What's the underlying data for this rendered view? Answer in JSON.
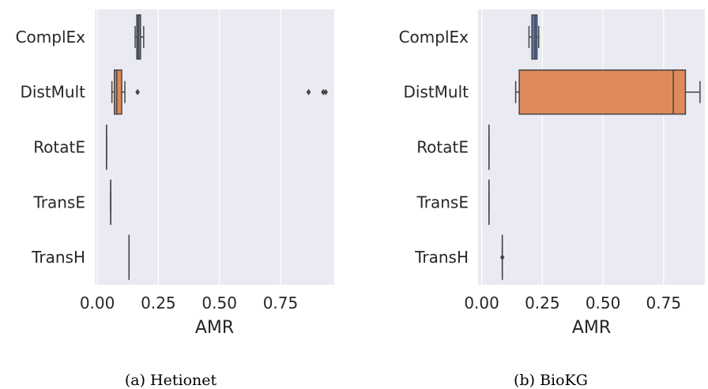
{
  "chart_data": [
    {
      "type": "boxplot",
      "orientation": "horizontal",
      "caption": "(a) Hetionet",
      "xlabel": "AMR",
      "xlim": [
        -0.01,
        0.97
      ],
      "xticks": [
        "0.00",
        "0.25",
        "0.50",
        "0.75"
      ],
      "xtick_values": [
        0,
        0.25,
        0.5,
        0.75
      ],
      "grid": true,
      "categories": [
        "ComplEx",
        "DistMult",
        "RotatE",
        "TransE",
        "TransH"
      ],
      "boxes": [
        {
          "name": "ComplEx",
          "color": "#4c72b0",
          "whislo": 0.155,
          "q1": 0.162,
          "median": 0.168,
          "q3": 0.177,
          "whishi": 0.19,
          "fliers": []
        },
        {
          "name": "DistMult",
          "color": "#dd8452",
          "whislo": 0.06,
          "q1": 0.07,
          "median": 0.08,
          "q3": 0.1,
          "whishi": 0.113,
          "fliers": [
            0.165,
            0.865,
            0.925,
            0.935
          ]
        },
        {
          "name": "RotatE",
          "color": "#55a868",
          "whislo": 0.038,
          "q1": 0.038,
          "median": 0.038,
          "q3": 0.038,
          "whishi": 0.038,
          "fliers": []
        },
        {
          "name": "TransE",
          "color": "#c44e52",
          "whislo": 0.055,
          "q1": 0.055,
          "median": 0.055,
          "q3": 0.055,
          "whishi": 0.055,
          "fliers": []
        },
        {
          "name": "TransH",
          "color": "#8172b3",
          "whislo": 0.13,
          "q1": 0.13,
          "median": 0.13,
          "q3": 0.13,
          "whishi": 0.13,
          "fliers": []
        }
      ]
    },
    {
      "type": "boxplot",
      "orientation": "horizontal",
      "caption": "(b) BioKG",
      "xlabel": "AMR",
      "xlim": [
        -0.015,
        0.92
      ],
      "xticks": [
        "0.00",
        "0.25",
        "0.50",
        "0.75"
      ],
      "xtick_values": [
        0,
        0.25,
        0.5,
        0.75
      ],
      "grid": true,
      "categories": [
        "ComplEx",
        "DistMult",
        "RotatE",
        "TransE",
        "TransH"
      ],
      "boxes": [
        {
          "name": "ComplEx",
          "color": "#4c72b0",
          "whislo": 0.195,
          "q1": 0.207,
          "median": 0.22,
          "q3": 0.228,
          "whishi": 0.235,
          "fliers": []
        },
        {
          "name": "DistMult",
          "color": "#dd8452",
          "whislo": 0.14,
          "q1": 0.155,
          "median": 0.79,
          "q3": 0.84,
          "whishi": 0.9,
          "fliers": []
        },
        {
          "name": "RotatE",
          "color": "#55a868",
          "whislo": 0.03,
          "q1": 0.03,
          "median": 0.03,
          "q3": 0.03,
          "whishi": 0.03,
          "fliers": []
        },
        {
          "name": "TransE",
          "color": "#c44e52",
          "whislo": 0.03,
          "q1": 0.03,
          "median": 0.03,
          "q3": 0.03,
          "whishi": 0.03,
          "fliers": []
        },
        {
          "name": "TransH",
          "color": "#8172b3",
          "whislo": 0.085,
          "q1": 0.085,
          "median": 0.085,
          "q3": 0.085,
          "whishi": 0.085,
          "fliers": [
            0.085
          ]
        }
      ]
    }
  ]
}
